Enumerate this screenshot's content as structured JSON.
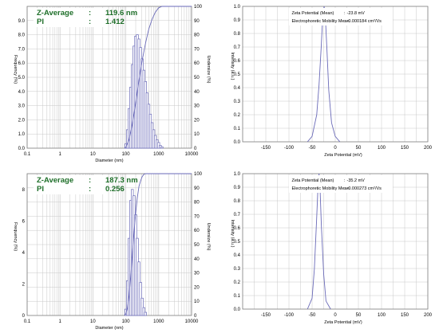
{
  "chart_data": [
    {
      "type": "bar",
      "panel": "size-distribution-1",
      "info": [
        {
          "label": "Z-Average",
          "sep": ":",
          "value": "119.6 nm"
        },
        {
          "label": "PI",
          "sep": ":",
          "value": "1.412"
        }
      ],
      "xlabel": "Diameter (nm)",
      "ylabel": "Frequency (%)",
      "y2label": "Undersize (%)",
      "xscale": "log",
      "xlim": [
        0.1,
        10000
      ],
      "xticks": [
        "0.1",
        "1",
        "10",
        "100",
        "1000",
        "10000"
      ],
      "ylim": [
        0,
        10
      ],
      "yticks": [
        "0.0",
        "1.0",
        "2.0",
        "3.0",
        "4.0",
        "5.0",
        "6.0",
        "7.0",
        "8.0",
        "9.0"
      ],
      "y2lim": [
        0,
        100
      ],
      "y2ticks": [
        "0",
        "10",
        "20",
        "30",
        "40",
        "50",
        "60",
        "70",
        "80",
        "90",
        "100"
      ],
      "grid": true,
      "bars": {
        "x": [
          100,
          112,
          126,
          141,
          158,
          178,
          200,
          224,
          251,
          282,
          316,
          355,
          398,
          447,
          501,
          562,
          631,
          708,
          794,
          891,
          1000,
          1122,
          1259
        ],
        "values": [
          0.3,
          1.3,
          2.8,
          4.3,
          5.9,
          7.2,
          7.9,
          8.0,
          7.7,
          7.1,
          6.3,
          5.5,
          4.7,
          3.9,
          3.1,
          2.4,
          1.8,
          1.3,
          0.9,
          0.6,
          0.4,
          0.2,
          0.1
        ]
      },
      "cumulative": {
        "x": [
          90,
          100,
          126,
          158,
          200,
          251,
          316,
          398,
          501,
          631,
          794,
          1000,
          1259,
          10000
        ],
        "values": [
          0,
          0.5,
          6,
          17,
          32,
          48,
          62,
          74,
          84,
          91,
          96,
          99,
          100,
          100
        ]
      }
    },
    {
      "type": "line",
      "panel": "zeta-potential-1",
      "info": [
        {
          "label": "Zeta Potential (Mean)",
          "sep": ":",
          "value": "-23.8 mV"
        },
        {
          "label": "Electrophoretic Mobility Mean",
          "sep": ":",
          "value": "-0.000184 cm²/Vs"
        }
      ],
      "xlabel": "Zeta Potential (mV)",
      "ylabel": "Intensity (a.u.)",
      "xlim": [
        -200,
        200
      ],
      "xticks": [
        "-150",
        "-100",
        "-50",
        "0",
        "50",
        "100",
        "150",
        "200"
      ],
      "ylim": [
        0,
        1.0
      ],
      "yticks": [
        "0.0",
        "0.1",
        "0.2",
        "0.3",
        "0.4",
        "0.5",
        "0.6",
        "0.7",
        "0.8",
        "0.9",
        "1.0"
      ],
      "grid": true,
      "series": [
        {
          "x": [
            -60,
            -50,
            -40,
            -35,
            -30,
            -27,
            -24,
            -21,
            -18,
            -14,
            -8,
            0,
            10
          ],
          "y": [
            0,
            0.04,
            0.2,
            0.42,
            0.72,
            0.92,
            1.0,
            0.9,
            0.68,
            0.38,
            0.14,
            0.04,
            0
          ]
        }
      ]
    },
    {
      "type": "bar",
      "panel": "size-distribution-2",
      "info": [
        {
          "label": "Z-Average",
          "sep": ":",
          "value": "187.3 nm"
        },
        {
          "label": "PI",
          "sep": ":",
          "value": "0.256"
        }
      ],
      "xlabel": "Diameter (nm)",
      "ylabel": "Frequency (%)",
      "y2label": "Undersize (%)",
      "xscale": "log",
      "xlim": [
        0.1,
        10000
      ],
      "xticks": [
        "0.1",
        "1",
        "10",
        "100",
        "1000",
        "10000"
      ],
      "ylim": [
        0,
        9
      ],
      "yticks": [
        "0",
        "2",
        "4",
        "6",
        "8"
      ],
      "y2lim": [
        0,
        100
      ],
      "y2ticks": [
        "0",
        "10",
        "20",
        "30",
        "40",
        "50",
        "60",
        "70",
        "80",
        "90",
        "100"
      ],
      "grid": true,
      "bars": {
        "x": [
          100,
          112,
          126,
          141,
          158,
          178,
          200,
          224,
          251,
          282,
          316,
          355,
          398
        ],
        "values": [
          0.4,
          2.2,
          4.9,
          7.3,
          8.0,
          7.6,
          6.4,
          4.9,
          3.4,
          2.1,
          1.1,
          0.5,
          0.2
        ]
      },
      "cumulative": {
        "x": [
          90,
          100,
          112,
          126,
          141,
          158,
          178,
          200,
          224,
          251,
          282,
          316,
          355,
          398,
          10000
        ],
        "values": [
          0,
          1,
          5,
          14,
          27,
          43,
          59,
          72,
          83,
          91,
          95,
          98,
          99.5,
          100,
          100
        ]
      }
    },
    {
      "type": "line",
      "panel": "zeta-potential-2",
      "info": [
        {
          "label": "Zeta Potential (Mean)",
          "sep": ":",
          "value": "-35.2 mV"
        },
        {
          "label": "Electrophoretic Mobility Mean",
          "sep": ":",
          "value": "-0.000273 cm²/Vs"
        }
      ],
      "xlabel": "Zeta Potential (mV)",
      "ylabel": "Intensity (a.u.)",
      "xlim": [
        -200,
        200
      ],
      "xticks": [
        "-150",
        "-100",
        "-50",
        "0",
        "50",
        "100",
        "150",
        "200"
      ],
      "ylim": [
        0,
        1.0
      ],
      "yticks": [
        "0.0",
        "0.1",
        "0.2",
        "0.3",
        "0.4",
        "0.5",
        "0.6",
        "0.7",
        "0.8",
        "0.9",
        "1.0"
      ],
      "grid": true,
      "series": [
        {
          "x": [
            -60,
            -50,
            -45,
            -40,
            -37,
            -35,
            -33,
            -30,
            -25,
            -20,
            -10
          ],
          "y": [
            0,
            0.08,
            0.3,
            0.68,
            0.92,
            1.0,
            0.9,
            0.62,
            0.26,
            0.06,
            0
          ]
        }
      ]
    }
  ]
}
